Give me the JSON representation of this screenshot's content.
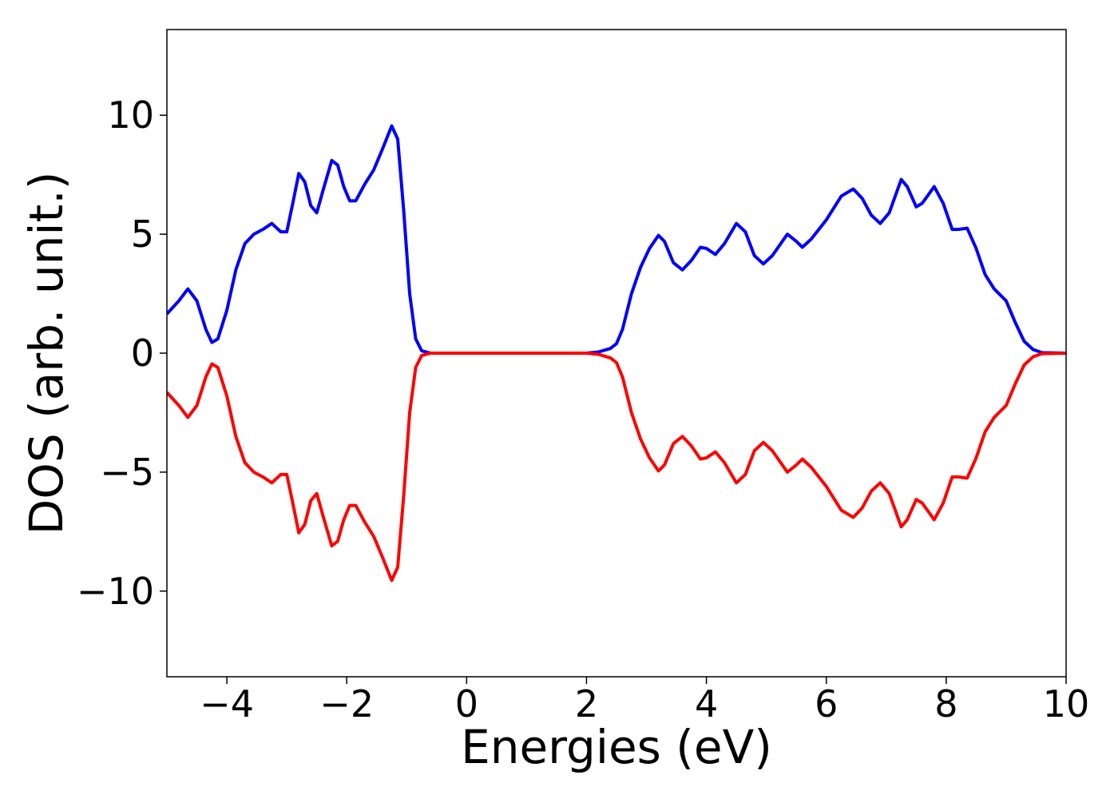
{
  "chart_data": {
    "type": "line",
    "xlabel": "Energies (eV)",
    "ylabel": "DOS (arb. unit.)",
    "x": [
      -5,
      -4.8,
      -4.65,
      -4.5,
      -4.35,
      -4.25,
      -4.15,
      -4.0,
      -3.85,
      -3.7,
      -3.55,
      -3.4,
      -3.25,
      -3.1,
      -3.0,
      -2.9,
      -2.8,
      -2.7,
      -2.6,
      -2.5,
      -2.4,
      -2.25,
      -2.15,
      -2.05,
      -1.95,
      -1.85,
      -1.7,
      -1.55,
      -1.4,
      -1.25,
      -1.15,
      -1.05,
      -0.95,
      -0.85,
      -0.75,
      -0.6,
      0,
      1,
      2.0,
      2.2,
      2.4,
      2.5,
      2.6,
      2.75,
      2.9,
      3.05,
      3.2,
      3.3,
      3.45,
      3.6,
      3.75,
      3.9,
      4.0,
      4.15,
      4.3,
      4.5,
      4.65,
      4.8,
      4.95,
      5.1,
      5.35,
      5.5,
      5.6,
      5.75,
      6.0,
      6.25,
      6.45,
      6.6,
      6.75,
      6.9,
      7.05,
      7.25,
      7.35,
      7.5,
      7.6,
      7.8,
      7.95,
      8.1,
      8.2,
      8.35,
      8.5,
      8.65,
      8.8,
      9.0,
      9.15,
      9.3,
      9.45,
      9.6,
      10
    ],
    "series": [
      {
        "color": "#0000ff",
        "values": [
          1.65,
          2.2,
          2.7,
          2.2,
          1.0,
          0.45,
          0.6,
          1.8,
          3.5,
          4.6,
          5.0,
          5.2,
          5.45,
          5.1,
          5.1,
          6.3,
          7.55,
          7.2,
          6.2,
          5.9,
          6.8,
          8.1,
          7.9,
          7.0,
          6.4,
          6.4,
          7.1,
          7.7,
          8.6,
          9.55,
          9.0,
          6.0,
          2.5,
          0.6,
          0.1,
          0.0,
          0.0,
          0.0,
          0.0,
          0.05,
          0.2,
          0.4,
          1.0,
          2.5,
          3.6,
          4.4,
          4.95,
          4.7,
          3.8,
          3.5,
          3.9,
          4.45,
          4.4,
          4.15,
          4.6,
          5.45,
          5.1,
          4.1,
          3.75,
          4.1,
          5.0,
          4.7,
          4.45,
          4.8,
          5.6,
          6.6,
          6.9,
          6.5,
          5.8,
          5.45,
          5.9,
          7.3,
          7.0,
          6.15,
          6.3,
          7.0,
          6.3,
          5.2,
          5.2,
          5.25,
          4.4,
          3.3,
          2.7,
          2.2,
          1.3,
          0.5,
          0.15,
          0.02,
          0.0
        ]
      },
      {
        "color": "#ff0000",
        "values": [
          -1.65,
          -2.2,
          -2.7,
          -2.2,
          -1.0,
          -0.45,
          -0.6,
          -1.8,
          -3.5,
          -4.6,
          -5.0,
          -5.2,
          -5.45,
          -5.1,
          -5.1,
          -6.3,
          -7.55,
          -7.2,
          -6.2,
          -5.9,
          -6.8,
          -8.1,
          -7.9,
          -7.0,
          -6.4,
          -6.4,
          -7.1,
          -7.7,
          -8.6,
          -9.55,
          -9.0,
          -6.0,
          -2.5,
          -0.6,
          -0.1,
          0.0,
          0.0,
          0.0,
          0.0,
          -0.05,
          -0.2,
          -0.4,
          -1.0,
          -2.5,
          -3.6,
          -4.4,
          -4.95,
          -4.7,
          -3.8,
          -3.5,
          -3.9,
          -4.45,
          -4.4,
          -4.15,
          -4.6,
          -5.45,
          -5.1,
          -4.1,
          -3.75,
          -4.1,
          -5.0,
          -4.7,
          -4.45,
          -4.8,
          -5.6,
          -6.6,
          -6.9,
          -6.5,
          -5.8,
          -5.45,
          -5.9,
          -7.3,
          -7.0,
          -6.15,
          -6.3,
          -7.0,
          -6.3,
          -5.2,
          -5.2,
          -5.25,
          -4.4,
          -3.3,
          -2.7,
          -2.2,
          -1.3,
          -0.5,
          -0.15,
          -0.02,
          0.0
        ]
      }
    ],
    "xlim": [
      -5,
      10
    ],
    "ylim": [
      -13.6,
      13.6
    ],
    "xticks": [
      {
        "value": -4,
        "label": "−4"
      },
      {
        "value": -2,
        "label": "−2"
      },
      0,
      2,
      4,
      6,
      8,
      10
    ],
    "yticks": [
      {
        "value": -10,
        "label": "−10"
      },
      {
        "value": -5,
        "label": "−5"
      },
      0,
      5,
      10
    ]
  }
}
